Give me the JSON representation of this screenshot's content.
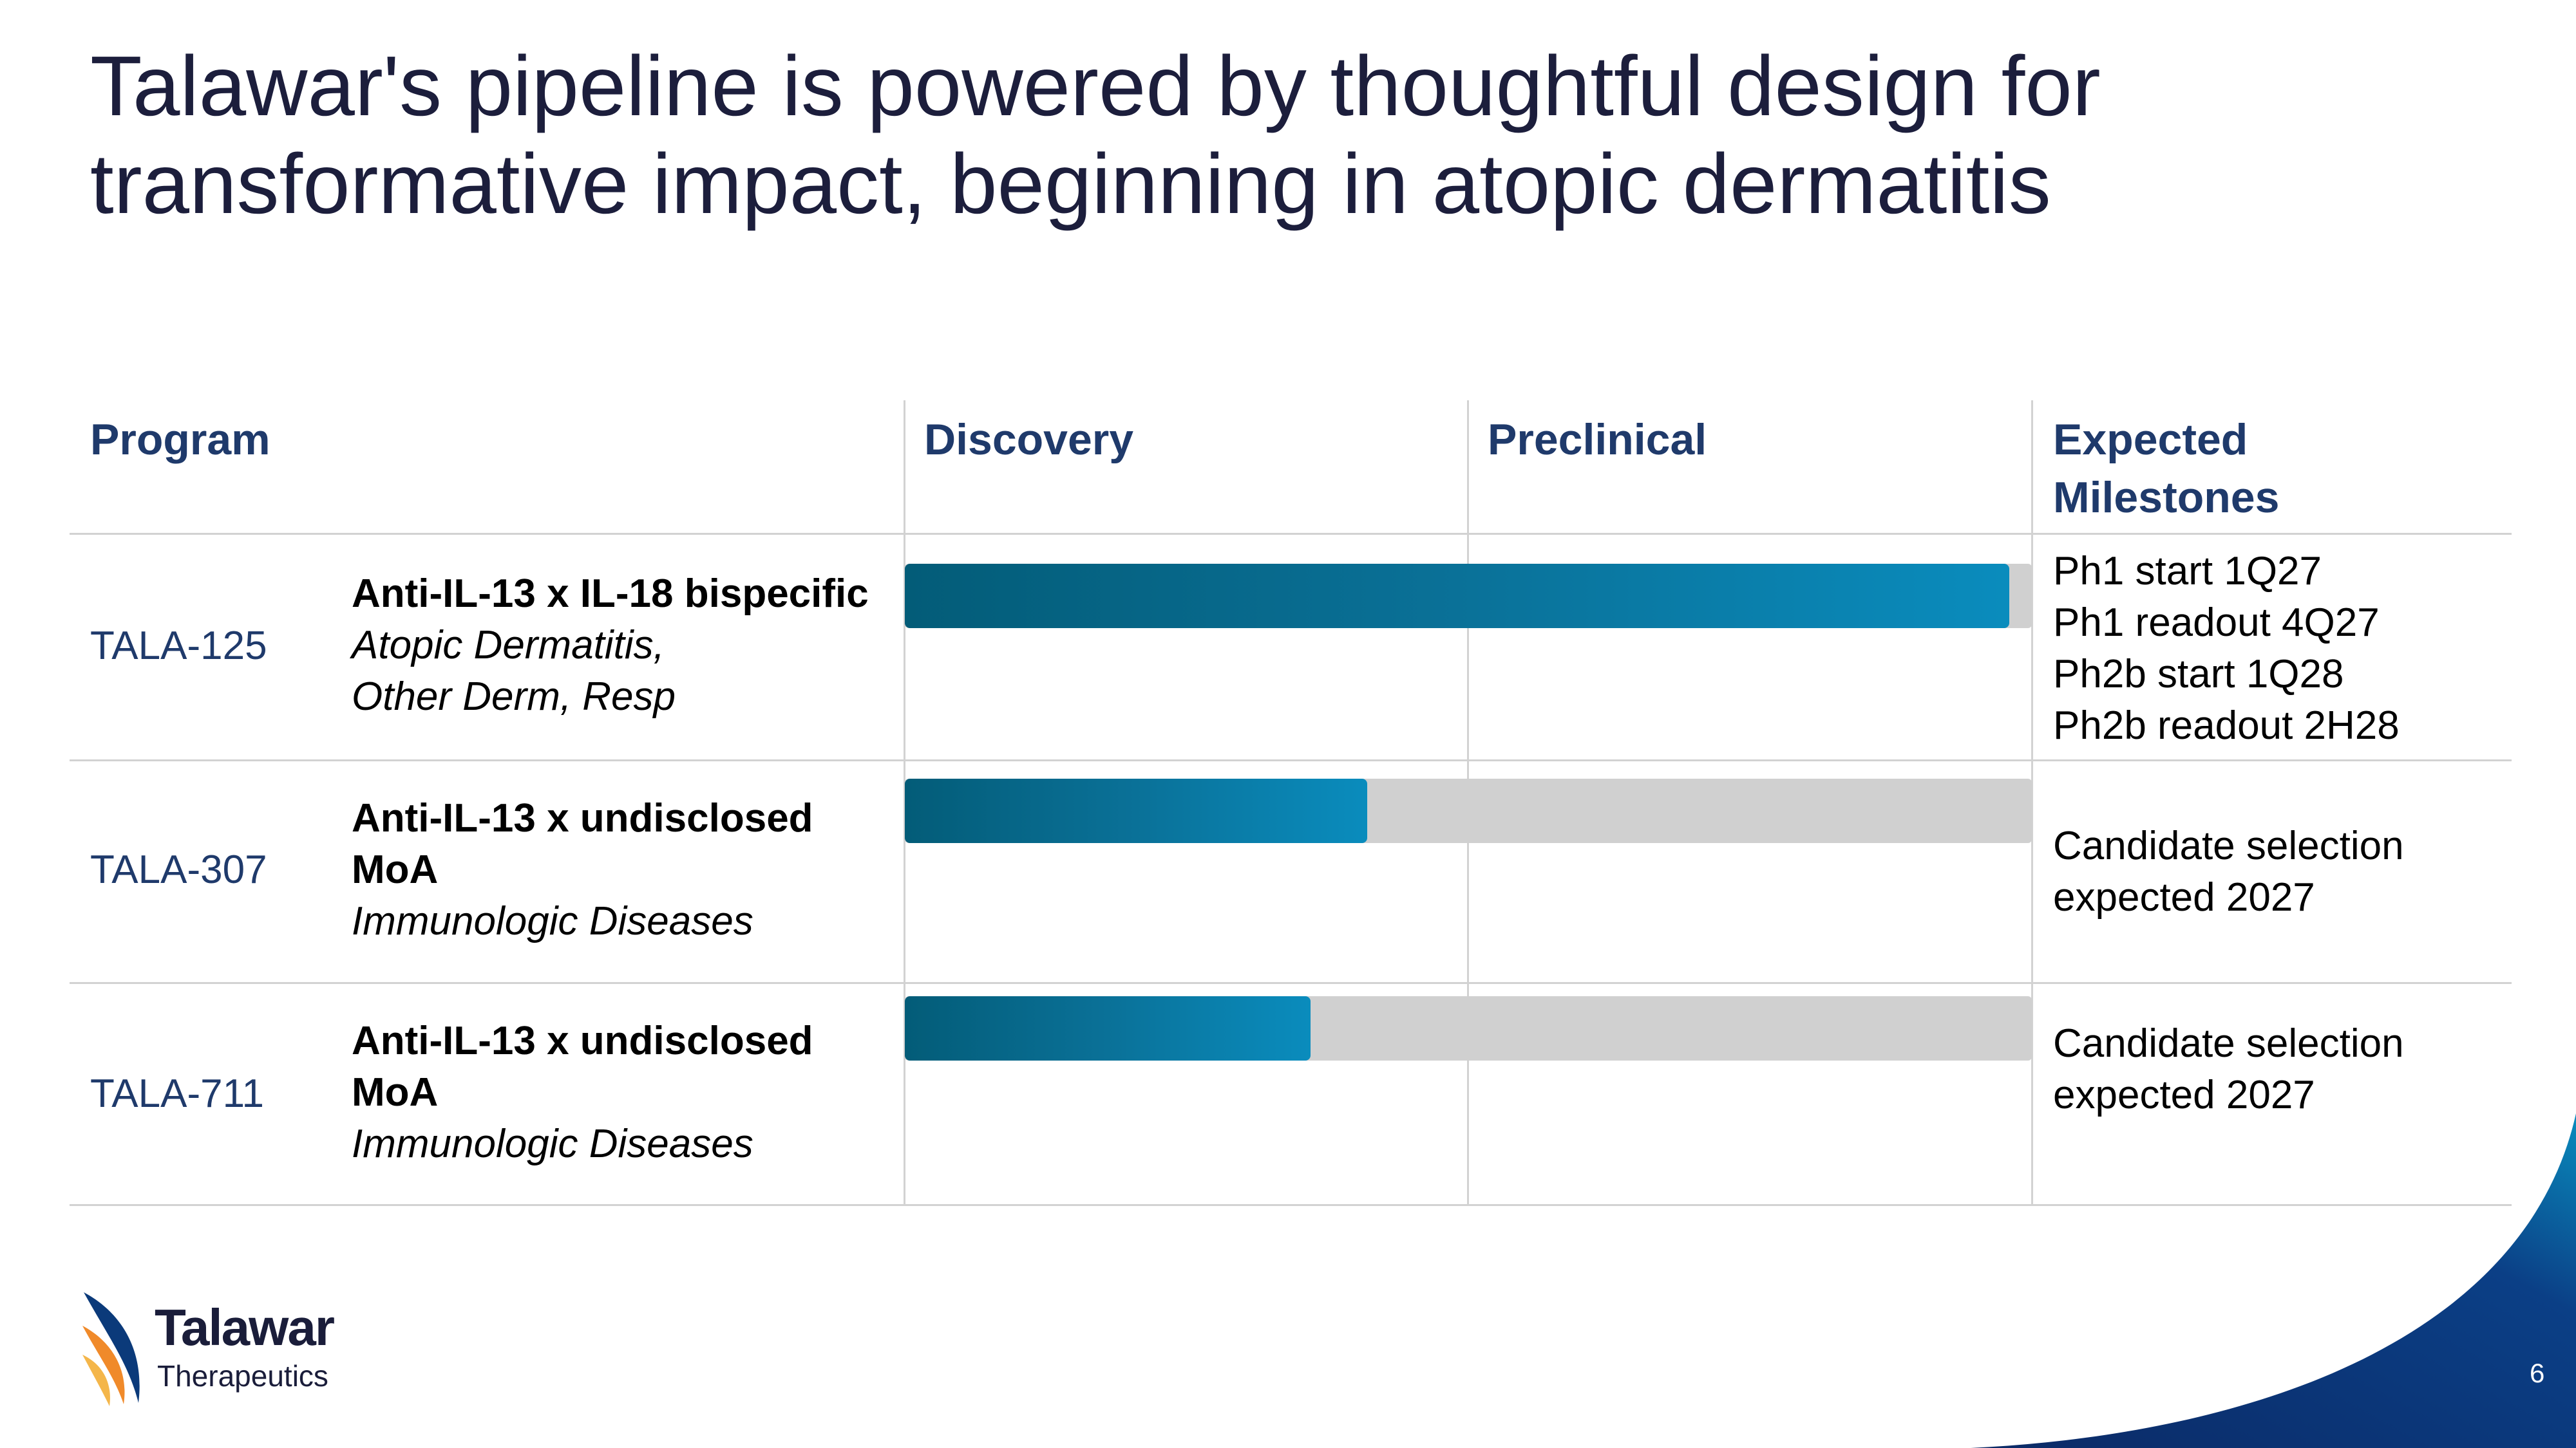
{
  "title": {
    "line1": "Talawar's pipeline is powered by thoughtful design for",
    "line2": "transformative impact, beginning in atopic dermatitis"
  },
  "table": {
    "headers": {
      "program": "Program",
      "discovery": "Discovery",
      "preclinical": "Preclinical",
      "milestones_line1": "Expected",
      "milestones_line2": "Milestones"
    },
    "rows": [
      {
        "code": "TALA-125",
        "name_line1": "Anti-IL-13 x IL-18 bispecific",
        "name_line2": "",
        "indication_line1": "Atopic Dermatitis,",
        "indication_line2": "Other Derm, Resp",
        "progress": 0.98,
        "milestones": [
          "Ph1 start 1Q27",
          "Ph1 readout 4Q27",
          "Ph2b start 1Q28",
          "Ph2b readout 2H28"
        ]
      },
      {
        "code": "TALA-307",
        "name_line1": "Anti-IL-13 x undisclosed",
        "name_line2": "MoA",
        "indication_line1": "Immunologic Diseases",
        "indication_line2": "",
        "progress": 0.41,
        "milestones": [
          "Candidate selection",
          "expected 2027"
        ]
      },
      {
        "code": "TALA-711",
        "name_line1": "Anti-IL-13 x undisclosed",
        "name_line2": "MoA",
        "indication_line1": "Immunologic Diseases",
        "indication_line2": "",
        "progress": 0.36,
        "milestones": [
          "Candidate selection",
          "expected 2027"
        ]
      }
    ]
  },
  "logo": {
    "word": "Talawar",
    "sub": "Therapeutics"
  },
  "page_number": "6",
  "colors": {
    "title": "#1c1e3c",
    "header": "#1f3a6b",
    "bar_start": "#035c78",
    "bar_end": "#0a8cbd",
    "track": "#d0d0d0",
    "corner": "#0b2a66"
  }
}
